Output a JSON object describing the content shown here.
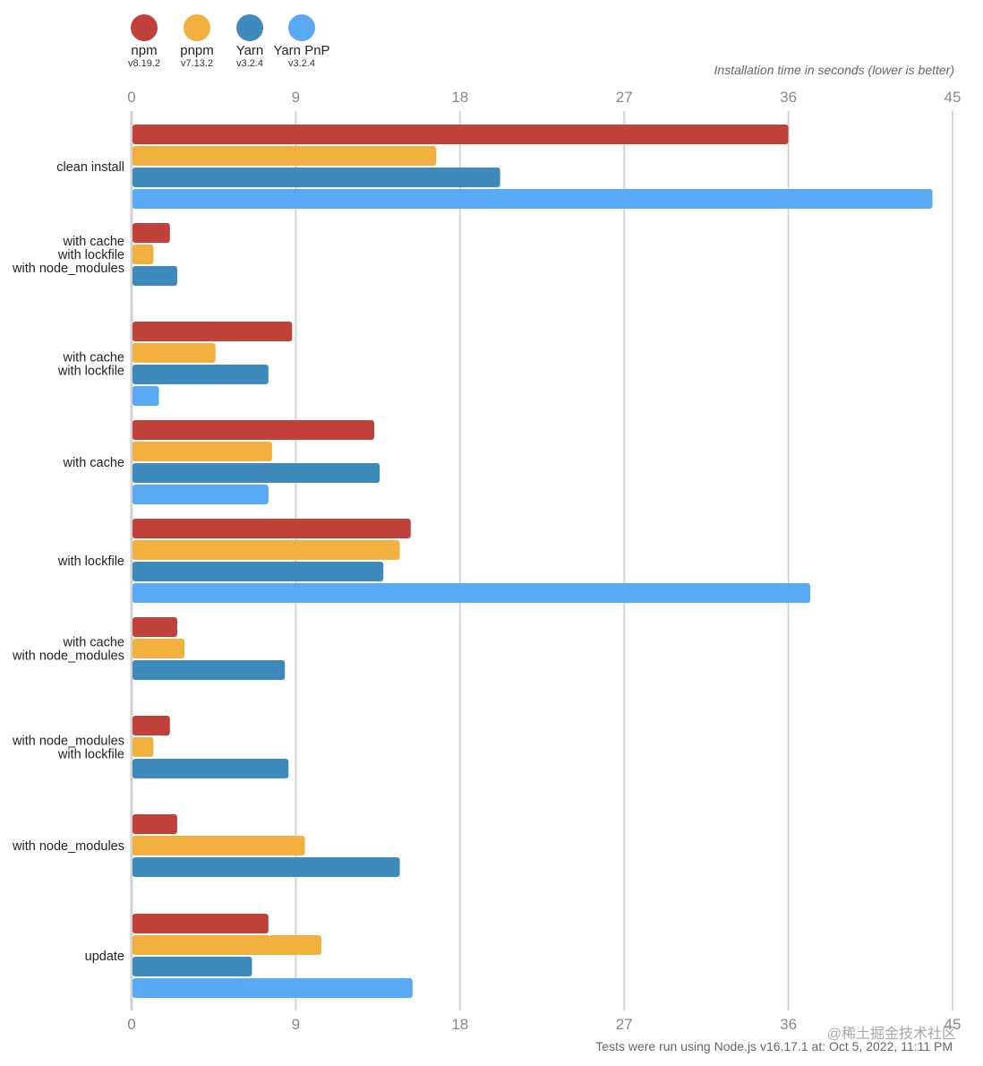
{
  "legend": [
    {
      "name": "npm",
      "version": "v8.19.2",
      "color": "#c0403a"
    },
    {
      "name": "pnpm",
      "version": "v7.13.2",
      "color": "#f2b13e"
    },
    {
      "name": "Yarn",
      "version": "v3.2.4",
      "color": "#3e8abd"
    },
    {
      "name": "Yarn PnP",
      "version": "v3.2.4",
      "color": "#5aa9f5"
    }
  ],
  "subtitle": "Installation time in seconds (lower is better)",
  "footer": "Tests were run using Node.js v16.17.1 at: Oct 5, 2022, 11:11 PM",
  "watermark": "@稀土掘金技术社区",
  "chart_data": {
    "type": "bar",
    "orientation": "horizontal",
    "title": "",
    "xlabel": "Installation time in seconds (lower is better)",
    "ylabel": "",
    "xlim": [
      0,
      45
    ],
    "ticks": [
      0,
      9,
      18,
      27,
      36,
      45
    ],
    "grid": true,
    "legend_position": "top-left",
    "categories": [
      [
        "clean install"
      ],
      [
        "with cache",
        "with lockfile",
        "with node_modules"
      ],
      [
        "with cache",
        "with lockfile"
      ],
      [
        "with cache"
      ],
      [
        "with lockfile"
      ],
      [
        "with cache",
        "with node_modules"
      ],
      [
        "with node_modules",
        "with lockfile"
      ],
      [
        "with node_modules"
      ],
      [
        "update"
      ]
    ],
    "series": [
      {
        "name": "npm",
        "color": "#c0403a",
        "values": [
          36.0,
          2.1,
          8.8,
          13.3,
          15.3,
          2.5,
          2.1,
          2.5,
          7.5
        ]
      },
      {
        "name": "pnpm",
        "color": "#f2b13e",
        "values": [
          16.7,
          1.2,
          4.6,
          7.7,
          14.7,
          2.9,
          1.2,
          9.5,
          10.4
        ]
      },
      {
        "name": "Yarn",
        "color": "#3e8abd",
        "values": [
          20.2,
          2.5,
          7.5,
          13.6,
          13.8,
          8.4,
          8.6,
          14.7,
          6.6
        ]
      },
      {
        "name": "Yarn PnP",
        "color": "#5aa9f5",
        "values": [
          43.9,
          null,
          1.5,
          7.5,
          37.2,
          null,
          null,
          null,
          15.4
        ]
      }
    ]
  }
}
